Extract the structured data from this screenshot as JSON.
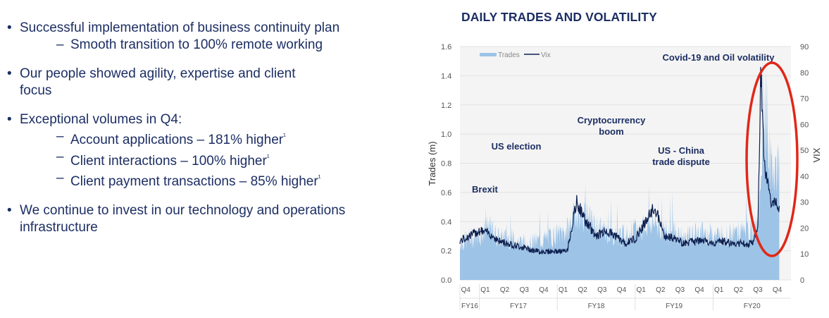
{
  "bullets": [
    {
      "text": "Successful implementation of business continuity plan",
      "subs": [
        "Smooth transition to 100% remote working"
      ]
    },
    {
      "text": "Our people showed agility, expertise and client focus",
      "subs": []
    },
    {
      "text": "Exceptional volumes in Q4:",
      "subs": [
        "Account applications – 181% higher¹",
        "Client interactions – 100% higher¹",
        "Client payment transactions – 85% higher¹"
      ]
    },
    {
      "text": "We continue to invest in our technology and operations infrastructure",
      "subs": []
    }
  ],
  "chart_data": {
    "type": "area",
    "title": "DAILY TRADES AND VOLATILITY",
    "ylabel": "Trades (m)",
    "y2label": "VIX",
    "ylim": [
      0,
      1.6
    ],
    "y2lim": [
      0,
      90
    ],
    "yticks": [
      "0.0",
      "0.2",
      "0.4",
      "0.6",
      "0.8",
      "1.0",
      "1.2",
      "1.4",
      "1.6"
    ],
    "y2ticks": [
      "0",
      "10",
      "20",
      "30",
      "40",
      "50",
      "60",
      "70",
      "80",
      "90"
    ],
    "quarter_labels": [
      "Q4",
      "Q1",
      "Q2",
      "Q3",
      "Q4",
      "Q1",
      "Q2",
      "Q3",
      "Q4",
      "Q1",
      "Q2",
      "Q3",
      "Q4",
      "Q1",
      "Q2",
      "Q3",
      "Q4"
    ],
    "fy_labels": [
      "FY16",
      "FY17",
      "FY18",
      "FY19",
      "FY20"
    ],
    "legend": {
      "position": "top-left",
      "entries": [
        "Trades",
        "Vix"
      ]
    },
    "annotations": [
      "Brexit",
      "US election",
      "Cryptocurrency boom",
      "US - China trade dispute",
      "Covid-19 and Oil volatility"
    ],
    "colors": {
      "trades": "#9dc3e6",
      "vix": "#0d1f4f",
      "highlight": "#e02818",
      "text": "#1c2e63"
    },
    "x_quarter_index": [
      0,
      1,
      1.5,
      2,
      2.5,
      3,
      3.5,
      4,
      4.5,
      5,
      5.5,
      6,
      6.5,
      7,
      7.5,
      8,
      8.5,
      9,
      9.5,
      10,
      10.5,
      11,
      11.5,
      12,
      12.5,
      13,
      13.5,
      14,
      14.5,
      15,
      15.3,
      15.45,
      15.55,
      15.7,
      16,
      16.4
    ],
    "series": [
      {
        "name": "Trades",
        "values": [
          0.25,
          0.3,
          0.35,
          0.28,
          0.28,
          0.26,
          0.24,
          0.26,
          0.28,
          0.3,
          0.33,
          0.45,
          0.42,
          0.35,
          0.32,
          0.3,
          0.3,
          0.33,
          0.36,
          0.38,
          0.32,
          0.33,
          0.28,
          0.3,
          0.32,
          0.3,
          0.3,
          0.3,
          0.32,
          0.32,
          0.35,
          0.6,
          1.05,
          0.95,
          0.75,
          0.75
        ]
      },
      {
        "name": "Vix",
        "values": [
          15,
          19,
          18,
          15,
          14,
          13,
          12,
          11,
          11,
          11,
          11,
          30,
          22,
          17,
          19,
          17,
          14,
          16,
          22,
          28,
          17,
          16,
          14,
          15,
          15,
          14,
          15,
          14,
          14,
          14,
          20,
          82,
          58,
          40,
          30,
          28
        ]
      }
    ]
  }
}
